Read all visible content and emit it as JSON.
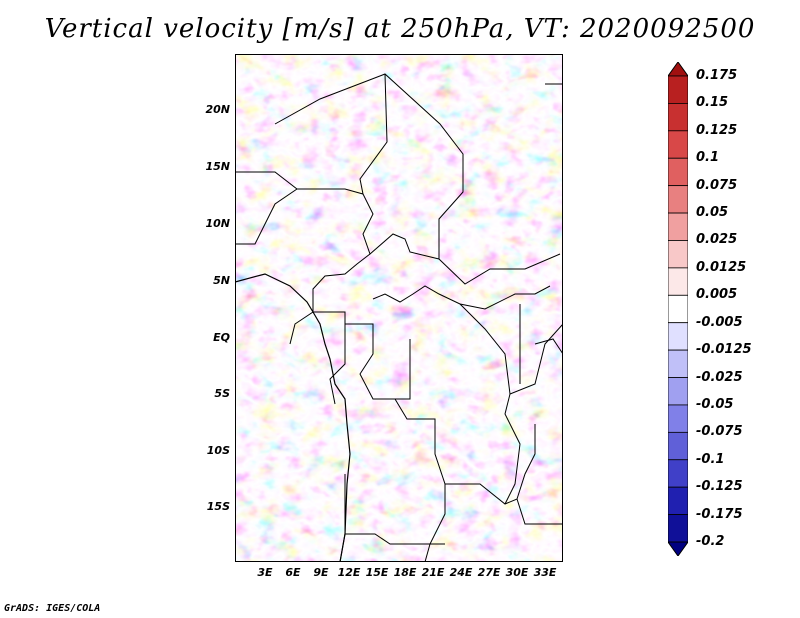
{
  "title": "Vertical velocity [m/s] at 250hPa, VT: 2020092500",
  "credit": "GrADS: IGES/COLA",
  "map": {
    "lat_ticks": [
      "20N",
      "15N",
      "10N",
      "5N",
      "EQ",
      "5S",
      "10S",
      "15S"
    ],
    "lon_ticks": [
      "3E",
      "6E",
      "9E",
      "12E",
      "15E",
      "18E",
      "21E",
      "24E",
      "27E",
      "30E",
      "33E"
    ],
    "lat_range": [
      -20,
      25
    ],
    "lon_range": [
      0,
      35
    ]
  },
  "colorbar": {
    "levels": [
      "0.175",
      "0.15",
      "0.125",
      "0.1",
      "0.075",
      "0.05",
      "0.025",
      "0.0125",
      "0.005",
      "-0.005",
      "-0.0125",
      "-0.025",
      "-0.05",
      "-0.075",
      "-0.1",
      "-0.125",
      "-0.175",
      "-0.2"
    ],
    "colors": [
      "#a01010",
      "#b82020",
      "#c83030",
      "#d84848",
      "#e06060",
      "#e88080",
      "#f0a0a0",
      "#f8c8c8",
      "#fce8e8",
      "#ffffff",
      "#e0e0ff",
      "#c0c0f8",
      "#a0a0f0",
      "#8080e8",
      "#6060d8",
      "#4040c8",
      "#2020b0",
      "#101098",
      "#000080"
    ]
  }
}
